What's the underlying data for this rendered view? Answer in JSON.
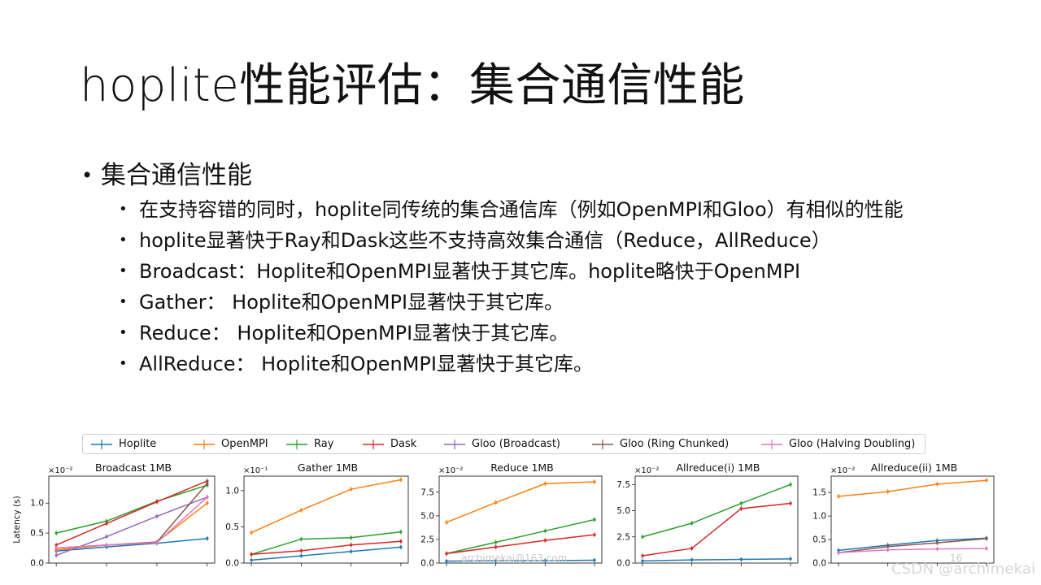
{
  "slide": {
    "title": "hoplite性能评估：集合通信性能",
    "bullet1": "集合通信性能",
    "sub_bullets": [
      "在支持容错的同时，hoplite同传统的集合通信库（例如OpenMPI和Gloo）有相似的性能",
      "hoplite显著快于Ray和Dask这些不支持高效集合通信（Reduce，AllReduce）",
      "Broadcast：Hoplite和OpenMPI显著快于其它库。hoplite略快于OpenMPI",
      "Gather： Hoplite和OpenMPI显著快于其它库。",
      "Reduce： Hoplite和OpenMPI显著快于其它库。",
      "AllReduce： Hoplite和OpenMPI显著快于其它库。"
    ],
    "watermark": "archimekai@163.com",
    "page_number": "16",
    "csdn_credit": "CSDN @archimekai"
  },
  "legend": [
    {
      "name": "Hoplite",
      "color": "#1f77b4"
    },
    {
      "name": "OpenMPI",
      "color": "#ff7f0e"
    },
    {
      "name": "Ray",
      "color": "#2ca02c"
    },
    {
      "name": "Dask",
      "color": "#d62728"
    },
    {
      "name": "Gloo (Broadcast)",
      "color": "#9467bd"
    },
    {
      "name": "Gloo (Ring Chunked)",
      "color": "#8c564b"
    },
    {
      "name": "Gloo (Halving Doubling)",
      "color": "#e377c2"
    }
  ],
  "chart_data": [
    {
      "type": "line",
      "title": "Broadcast 1MB",
      "ylabel": "Latency (s)",
      "scale": "×10⁻²",
      "ylim": [
        0,
        1.45
      ],
      "yticks": [
        "0.0",
        "0.5",
        "1.0"
      ],
      "ytick_values": [
        0,
        0.5,
        1.0
      ],
      "x": [
        1,
        2,
        3,
        4
      ],
      "series": [
        {
          "name": "Hoplite",
          "values": [
            0.2,
            0.27,
            0.33,
            0.41
          ]
        },
        {
          "name": "OpenMPI",
          "values": [
            0.22,
            0.3,
            0.35,
            1.0
          ]
        },
        {
          "name": "Ray",
          "values": [
            0.5,
            0.7,
            1.03,
            1.3
          ]
        },
        {
          "name": "Dask",
          "values": [
            0.3,
            0.66,
            1.02,
            1.37
          ]
        },
        {
          "name": "Gloo (Broadcast)",
          "values": [
            0.13,
            0.44,
            0.78,
            1.1
          ]
        },
        {
          "name": "Gloo (Ring Chunked)",
          "values": [
            0.25,
            0.3,
            0.35,
            1.33
          ]
        },
        {
          "name": "Gloo (Halving Doubling)",
          "values": [
            0.25,
            0.3,
            0.34,
            1.1
          ]
        }
      ]
    },
    {
      "type": "line",
      "title": "Gather 1MB",
      "ylabel": "",
      "scale": "×10⁻¹",
      "ylim": [
        0,
        1.2
      ],
      "yticks": [
        "0.0",
        "0.5",
        "1.0"
      ],
      "ytick_values": [
        0,
        0.5,
        1.0
      ],
      "x": [
        1,
        2,
        3,
        4
      ],
      "series": [
        {
          "name": "Hoplite",
          "values": [
            0.04,
            0.1,
            0.16,
            0.22
          ]
        },
        {
          "name": "OpenMPI",
          "values": [
            0.42,
            0.73,
            1.02,
            1.15
          ]
        },
        {
          "name": "Ray",
          "values": [
            0.12,
            0.33,
            0.35,
            0.43
          ]
        },
        {
          "name": "Dask",
          "values": [
            0.12,
            0.17,
            0.25,
            0.3
          ]
        }
      ]
    },
    {
      "type": "line",
      "title": "Reduce 1MB",
      "ylabel": "",
      "scale": "×10⁻²",
      "ylim": [
        0,
        9.2
      ],
      "yticks": [
        "0.0",
        "2.5",
        "5.0",
        "7.5"
      ],
      "ytick_values": [
        0,
        2.5,
        5.0,
        7.5
      ],
      "x": [
        1,
        2,
        3,
        4
      ],
      "series": [
        {
          "name": "Hoplite",
          "values": [
            0.2,
            0.25,
            0.25,
            0.3
          ]
        },
        {
          "name": "OpenMPI",
          "values": [
            4.3,
            6.4,
            8.4,
            8.6
          ]
        },
        {
          "name": "Ray",
          "values": [
            1.0,
            2.2,
            3.4,
            4.6
          ]
        },
        {
          "name": "Dask",
          "values": [
            1.0,
            1.7,
            2.4,
            3.0
          ]
        }
      ]
    },
    {
      "type": "line",
      "title": "Allreduce(i) 1MB",
      "ylabel": "",
      "scale": "×10⁻²",
      "ylim": [
        0,
        8.3
      ],
      "yticks": [
        "0.0",
        "2.5",
        "5.0",
        "7.5"
      ],
      "ytick_values": [
        0,
        2.5,
        5.0,
        7.5
      ],
      "x": [
        1,
        2,
        3,
        4
      ],
      "series": [
        {
          "name": "Hoplite",
          "values": [
            0.2,
            0.3,
            0.35,
            0.4
          ]
        },
        {
          "name": "Ray",
          "values": [
            2.5,
            3.8,
            5.7,
            7.5
          ]
        },
        {
          "name": "Dask",
          "values": [
            0.7,
            1.4,
            5.2,
            5.7
          ]
        }
      ]
    },
    {
      "type": "line",
      "title": "Allreduce(ii) 1MB",
      "ylabel": "",
      "scale": "×10⁻²",
      "ylim": [
        0,
        1.85
      ],
      "yticks": [
        "0.0",
        "0.5",
        "1.0",
        "1.5"
      ],
      "ytick_values": [
        0,
        0.5,
        1.0,
        1.5
      ],
      "x": [
        1,
        2,
        3,
        4
      ],
      "series": [
        {
          "name": "Hoplite",
          "values": [
            0.27,
            0.38,
            0.48,
            0.53
          ]
        },
        {
          "name": "OpenMPI",
          "values": [
            1.42,
            1.52,
            1.68,
            1.76
          ]
        },
        {
          "name": "Gloo (Ring Chunked)",
          "values": [
            0.22,
            0.35,
            0.43,
            0.52
          ]
        },
        {
          "name": "Gloo (Halving Doubling)",
          "values": [
            0.22,
            0.28,
            0.3,
            0.31
          ]
        }
      ]
    }
  ]
}
